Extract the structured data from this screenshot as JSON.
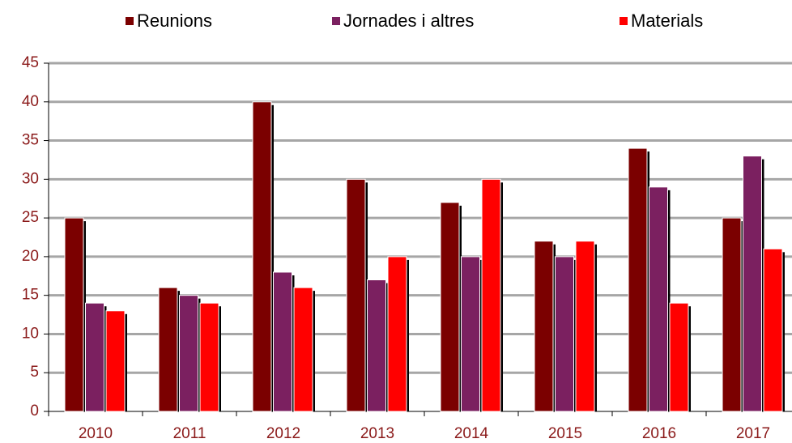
{
  "chart_data": {
    "type": "bar",
    "categories": [
      "2010",
      "2011",
      "2012",
      "2013",
      "2014",
      "2015",
      "2016",
      "2017"
    ],
    "series": [
      {
        "name": "Reunions",
        "color": "#7b0000",
        "values": [
          25,
          16,
          40,
          30,
          27,
          22,
          34,
          25
        ]
      },
      {
        "name": "Jornades i altres",
        "color": "#7b2060",
        "values": [
          14,
          15,
          18,
          17,
          20,
          20,
          29,
          33
        ]
      },
      {
        "name": "Materials",
        "color": "#ff0000",
        "values": [
          13,
          14,
          16,
          20,
          30,
          22,
          14,
          21
        ]
      }
    ],
    "ylim": [
      0,
      45
    ],
    "yticks": [
      0,
      5,
      10,
      15,
      20,
      25,
      30,
      35,
      40,
      45
    ],
    "grid": true,
    "legend": "top"
  }
}
